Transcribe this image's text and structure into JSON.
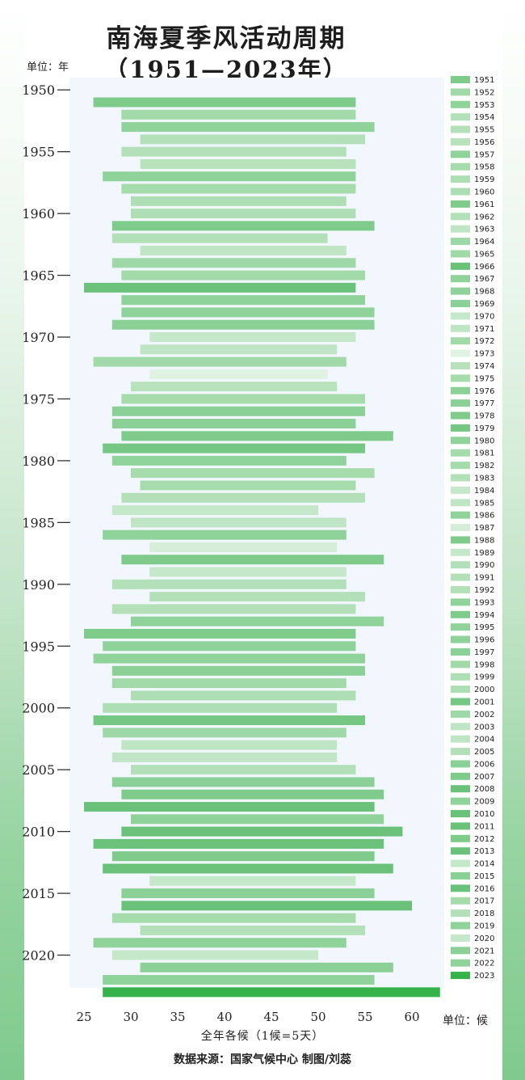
{
  "chart_data": {
    "type": "bar",
    "orientation": "horizontal-range",
    "title": "南海夏季风活动周期",
    "subtitle": "（1951—2023年）",
    "ylabel": "单位：年",
    "xlabel": "全年各候（1候=5天）",
    "x_unit_label": "单位：候",
    "xlim": [
      24,
      63
    ],
    "x_ticks": [
      25,
      30,
      35,
      40,
      45,
      50,
      55,
      60
    ],
    "y_ticks": [
      1950,
      1955,
      1960,
      1965,
      1970,
      1975,
      1980,
      1985,
      1990,
      1995,
      2000,
      2005,
      2010,
      2015,
      2020
    ],
    "grid": false,
    "legend_position": "right",
    "series": [
      {
        "categories": [
          1951,
          1952,
          1953,
          1954,
          1955,
          1956,
          1957,
          1958,
          1959,
          1960,
          1961,
          1962,
          1963,
          1964,
          1965,
          1966,
          1967,
          1968,
          1969,
          1970,
          1971,
          1972,
          1973,
          1974,
          1975,
          1976,
          1977,
          1978,
          1979,
          1980,
          1981,
          1982,
          1983,
          1984,
          1985,
          1986,
          1987,
          1988,
          1989,
          1990,
          1991,
          1992,
          1993,
          1994,
          1995,
          1996,
          1997,
          1998,
          1999,
          2000,
          2001,
          2002,
          2003,
          2004,
          2005,
          2006,
          2007,
          2008,
          2009,
          2010,
          2011,
          2012,
          2013,
          2014,
          2015,
          2016,
          2017,
          2018,
          2019,
          2020,
          2021,
          2022,
          2023
        ],
        "onset": [
          26,
          29,
          29,
          31,
          29,
          31,
          27,
          29,
          30,
          30,
          28,
          28,
          31,
          28,
          29,
          25,
          29,
          29,
          28,
          32,
          31,
          26,
          32,
          30,
          29,
          28,
          28,
          29,
          27,
          28,
          30,
          31,
          29,
          28,
          30,
          27,
          32,
          29,
          32,
          28,
          32,
          28,
          30,
          25,
          27,
          26,
          28,
          28,
          30,
          27,
          26,
          27,
          29,
          28,
          30,
          28,
          29,
          25,
          30,
          29,
          26,
          28,
          27,
          32,
          29,
          29,
          28,
          31,
          26,
          28,
          31,
          27,
          27
        ],
        "withdrawal": [
          54,
          54,
          56,
          55,
          53,
          54,
          54,
          54,
          53,
          54,
          56,
          51,
          53,
          54,
          55,
          54,
          55,
          56,
          56,
          54,
          52,
          53,
          51,
          52,
          55,
          55,
          54,
          58,
          55,
          53,
          56,
          54,
          55,
          50,
          53,
          53,
          52,
          57,
          53,
          53,
          55,
          54,
          57,
          54,
          54,
          55,
          55,
          53,
          54,
          52,
          55,
          53,
          52,
          52,
          54,
          56,
          57,
          56,
          57,
          59,
          57,
          56,
          58,
          54,
          56,
          60,
          54,
          55,
          53,
          50,
          58,
          56,
          63
        ],
        "colors": [
          "#7fcb8b",
          "#a1d9a9",
          "#8fd29a",
          "#b3e0b9",
          "#b3e0b9",
          "#b7e2bc",
          "#8fd29a",
          "#a6dbac",
          "#aedeb4",
          "#aedeb4",
          "#7fcb8b",
          "#b3e0b9",
          "#bfe5c4",
          "#9fd8a8",
          "#a1d9a9",
          "#6ac27a",
          "#8fd29a",
          "#8fd29a",
          "#8bd097",
          "#c6e8ca",
          "#c0e5c4",
          "#a1d9a9",
          "#e0f2e2",
          "#b7e2bc",
          "#a6dbac",
          "#8bd097",
          "#8bd097",
          "#7fcb8b",
          "#76c784",
          "#8fd29a",
          "#a6dbac",
          "#a6dbac",
          "#b3e0b9",
          "#c6e8ca",
          "#bfe5c4",
          "#8fd29a",
          "#d6eed9",
          "#7fcb8b",
          "#c6e8ca",
          "#b3e0b9",
          "#b3e0b9",
          "#b3e0b9",
          "#8fd29a",
          "#7fcb8b",
          "#8fd29a",
          "#8fd29a",
          "#8bd097",
          "#a1d9a9",
          "#aedeb4",
          "#aedeb4",
          "#76c784",
          "#9fd8a8",
          "#bfe5c4",
          "#bfe5c4",
          "#b3e0b9",
          "#8bd097",
          "#7fcb8b",
          "#6ac27a",
          "#8fd29a",
          "#6ac27a",
          "#6ac27a",
          "#7fcb8b",
          "#6ac27a",
          "#c6e8ca",
          "#8bd097",
          "#6ac27a",
          "#a6dbac",
          "#b3e0b9",
          "#8fd29a",
          "#c6e8ca",
          "#8bd097",
          "#8fd29a",
          "#36b24a"
        ]
      }
    ]
  },
  "source_text": "数据来源：国家气候中心  制图/刘蕊"
}
